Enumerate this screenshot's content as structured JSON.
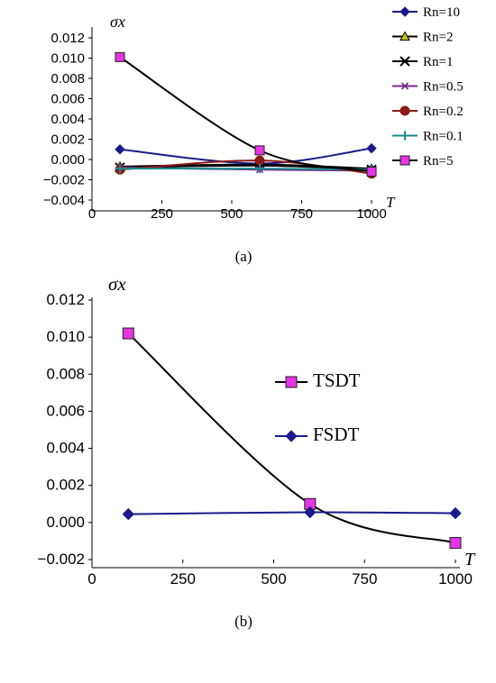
{
  "chart_data": [
    {
      "type": "line",
      "panel_label": "(a)",
      "xlabel": "T",
      "ylabel": "σx",
      "xlim": [
        0,
        1000
      ],
      "ylim": [
        -0.004,
        0.012
      ],
      "xticks": [
        "0",
        "250",
        "500",
        "750",
        "1000"
      ],
      "yticks": [
        "0.012",
        "0.010",
        "0.008",
        "0.006",
        "0.004",
        "0.002",
        "0.000",
        "−0.002",
        "−0.004"
      ],
      "legend_position": "right",
      "x": [
        100,
        600,
        1000
      ],
      "series": [
        {
          "name": "Rn=10",
          "values": [
            0.001,
            -0.0004,
            0.0011
          ],
          "color": "#1a1a8c",
          "marker": "diamond"
        },
        {
          "name": "Rn=2",
          "values": [
            -0.0007,
            -0.0005,
            -0.0009
          ],
          "color": "#000000",
          "marker": "triangle"
        },
        {
          "name": "Rn=1",
          "values": [
            -0.0008,
            -0.0006,
            -0.001
          ],
          "color": "#000000",
          "marker": "x"
        },
        {
          "name": "Rn=0.5",
          "values": [
            -0.0008,
            -0.001,
            -0.0011
          ],
          "color": "#7a2a8c",
          "marker": "asterisk"
        },
        {
          "name": "Rn=0.2",
          "values": [
            -0.001,
            -0.0001,
            -0.0014
          ],
          "color": "#8c1a1a",
          "marker": "circle"
        },
        {
          "name": "Rn=0.1",
          "values": [
            -0.0009,
            -0.0009,
            -0.001
          ],
          "color": "#1a8c8c",
          "marker": "plus"
        },
        {
          "name": "Rn=5",
          "values": [
            0.0101,
            0.0009,
            -0.0012
          ],
          "color": "#e633e6",
          "marker": "square",
          "line_color": "#000000"
        }
      ]
    },
    {
      "type": "line",
      "panel_label": "(b)",
      "xlabel": "T",
      "ylabel": "σx",
      "xlim": [
        0,
        1000
      ],
      "ylim": [
        -0.002,
        0.012
      ],
      "xticks": [
        "0",
        "250",
        "500",
        "750",
        "1000"
      ],
      "yticks": [
        "0.012",
        "0.010",
        "0.008",
        "0.006",
        "0.004",
        "0.002",
        "0.000",
        "−0.002"
      ],
      "legend_position": "inside-right",
      "x": [
        100,
        600,
        1000
      ],
      "series": [
        {
          "name": "TSDT",
          "values": [
            0.0102,
            0.001,
            -0.0011
          ],
          "color": "#e633e6",
          "marker": "square",
          "line_color": "#000000"
        },
        {
          "name": "FSDT",
          "values": [
            0.00045,
            0.00055,
            0.0005
          ],
          "color": "#1a1a8c",
          "marker": "diamond"
        }
      ]
    }
  ]
}
